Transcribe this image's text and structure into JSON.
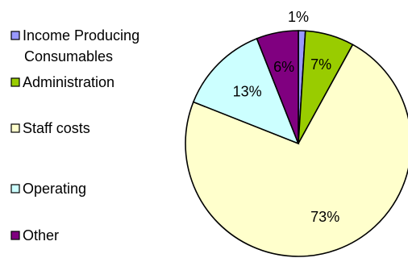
{
  "chart_data": {
    "type": "pie",
    "title": "",
    "legend_placement": "left",
    "slices": [
      {
        "label": "Income Producing Consumables",
        "label_lines": [
          "Income Producing",
          "Consumables"
        ],
        "value": 1,
        "data_label": "1%",
        "color": "#9999ff"
      },
      {
        "label": "Administration",
        "label_lines": [
          "Administration"
        ],
        "value": 7,
        "data_label": "7%",
        "color": "#99cc00"
      },
      {
        "label": "Staff costs",
        "label_lines": [
          "Staff costs"
        ],
        "value": 73,
        "data_label": "73%",
        "color": "#ffffcc"
      },
      {
        "label": "Operating",
        "label_lines": [
          "Operating"
        ],
        "value": 13,
        "data_label": "13%",
        "color": "#ccffff"
      },
      {
        "label": "Other",
        "label_lines": [
          "Other"
        ],
        "value": 6,
        "data_label": "6%",
        "color": "#800080"
      }
    ]
  }
}
